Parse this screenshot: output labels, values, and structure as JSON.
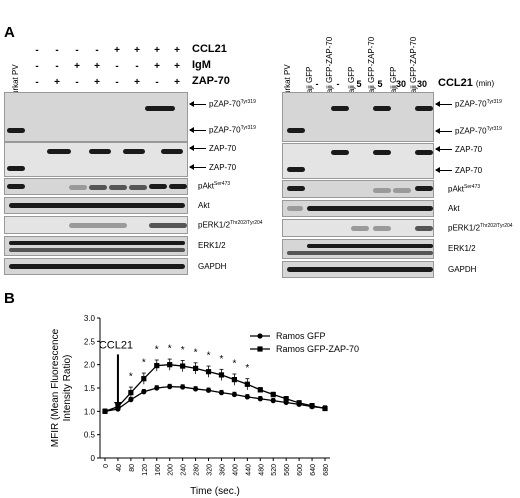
{
  "panel_a": {
    "letter": "A",
    "left": {
      "lane_labels": [
        "Jurkat PV"
      ],
      "conditions": [
        {
          "name": "CCL21",
          "signs": [
            "-",
            "-",
            "-",
            "-",
            "+",
            "+",
            "+",
            "+"
          ]
        },
        {
          "name": "IgM",
          "signs": [
            "-",
            "-",
            "+",
            "+",
            "-",
            "-",
            "+",
            "+"
          ]
        },
        {
          "name": "ZAP-70",
          "signs": [
            "-",
            "+",
            "-",
            "+",
            "-",
            "+",
            "-",
            "+"
          ]
        }
      ],
      "labels": {
        "pzap_upper": "pZAP-70",
        "pzap_upper_sup": "Tyr319",
        "pzap_lower": "pZAP-70",
        "pzap_lower_sup": "Tyr319",
        "zap_upper": "ZAP-70",
        "zap_lower": "ZAP-70",
        "pakt": "pAkt",
        "pakt_sup": "Ser473",
        "akt": "Akt",
        "perk": "pERK1/2",
        "perk_sup": "Thr202/Tyr204",
        "erk": "ERK1/2",
        "gapdh": "GAPDH"
      }
    },
    "right": {
      "lane_labels": [
        "Jurkat PV",
        "Raji GFP",
        "Raji GFP-ZAP-70",
        "Raji GFP",
        "Raji GFP-ZAP-70",
        "Raji GFP",
        "Raji GFP-ZAP-70"
      ],
      "ccl21_values": [
        "-",
        "-",
        "5",
        "5",
        "30",
        "30"
      ],
      "ccl21_label": "CCL21",
      "ccl21_unit": "(min)",
      "labels": {
        "pzap_upper": "pZAP-70",
        "pzap_upper_sup": "Tyr319",
        "pzap_lower": "pZAP-70",
        "pzap_lower_sup": "Tyr319",
        "zap_upper": "ZAP-70",
        "zap_lower": "ZAP-70",
        "pakt": "pAkt",
        "pakt_sup": "Ser473",
        "akt": "Akt",
        "perk": "pERK1/2",
        "perk_sup": "Thr202/Tyr204",
        "erk": "ERK1/2",
        "gapdh": "GAPDH"
      }
    }
  },
  "panel_b": {
    "letter": "B",
    "annotation": "CCL21",
    "star": "*",
    "chart_data": {
      "type": "line",
      "xlabel": "Time (sec.)",
      "ylabel": "MFIR (Mean Fluorescence Intensity Ratio)",
      "ylim": [
        0,
        3.0
      ],
      "yticks": [
        "0",
        "0.5",
        "1.0",
        "1.5",
        "2.0",
        "2.5",
        "3.0"
      ],
      "x": [
        0,
        40,
        80,
        120,
        160,
        200,
        240,
        280,
        320,
        360,
        400,
        440,
        480,
        520,
        560,
        600,
        640,
        680
      ],
      "xticks": [
        "0",
        "40",
        "80",
        "120",
        "160",
        "200",
        "240",
        "280",
        "320",
        "360",
        "400",
        "440",
        "480",
        "520",
        "560",
        "600",
        "640",
        "680"
      ],
      "series": [
        {
          "name": "Ramos GFP",
          "marker": "circle",
          "values": [
            1.0,
            1.05,
            1.25,
            1.42,
            1.5,
            1.53,
            1.52,
            1.48,
            1.45,
            1.4,
            1.36,
            1.31,
            1.27,
            1.23,
            1.19,
            1.15,
            1.1,
            1.07
          ]
        },
        {
          "name": "Ramos GFP-ZAP-70",
          "marker": "square",
          "values": [
            1.0,
            1.1,
            1.4,
            1.7,
            1.98,
            2.0,
            1.97,
            1.92,
            1.85,
            1.78,
            1.68,
            1.58,
            1.46,
            1.36,
            1.27,
            1.18,
            1.12,
            1.06
          ]
        }
      ],
      "significant_x": [
        80,
        120,
        160,
        200,
        240,
        280,
        320,
        360,
        400,
        440
      ],
      "legend_position": "top-right",
      "annotation_arrow_x": 40
    }
  }
}
